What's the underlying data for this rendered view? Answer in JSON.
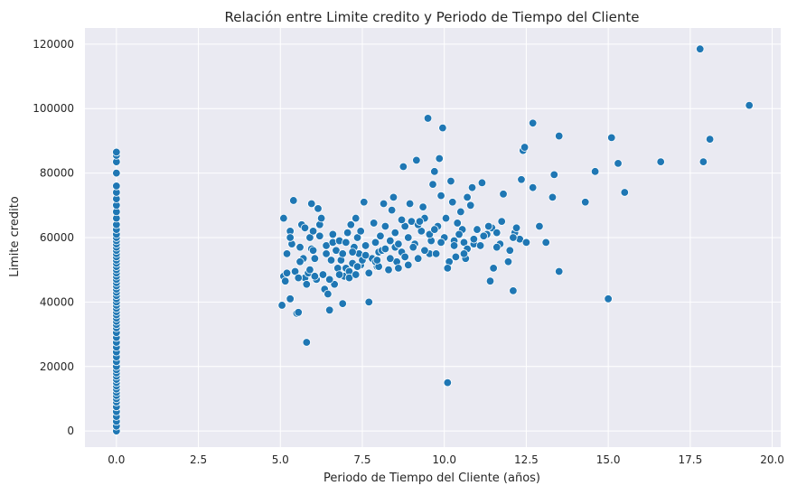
{
  "chart_data": {
    "type": "scatter",
    "title": "Relación entre Limite credito y Periodo de Tiempo del Cliente",
    "xlabel": "Periodo de Tiempo del Cliente (años)",
    "ylabel": "Limite credito",
    "xlim": [
      -0.96,
      20.26
    ],
    "ylim": [
      -5000,
      125000
    ],
    "xticks": [
      0,
      2.5,
      5,
      7.5,
      10,
      12.5,
      15,
      17.5,
      20
    ],
    "xtick_labels": [
      "0.0",
      "2.5",
      "5.0",
      "7.5",
      "10.0",
      "12.5",
      "15.0",
      "17.5",
      "20.0"
    ],
    "yticks": [
      0,
      20000,
      40000,
      60000,
      80000,
      100000,
      120000
    ],
    "ytick_labels": [
      "0",
      "20000",
      "40000",
      "60000",
      "80000",
      "100000",
      "120000"
    ],
    "grid": true,
    "point_color": "#1f77b4",
    "background_color": "#eaeaf2",
    "points": [
      [
        0,
        0
      ],
      [
        0,
        1500
      ],
      [
        0,
        3000
      ],
      [
        0,
        4500
      ],
      [
        0,
        6000
      ],
      [
        0,
        7500
      ],
      [
        0,
        9000
      ],
      [
        0,
        10000
      ],
      [
        0,
        11000
      ],
      [
        0,
        12000
      ],
      [
        0,
        13000
      ],
      [
        0,
        14000
      ],
      [
        0,
        15000
      ],
      [
        0,
        16000
      ],
      [
        0,
        17000
      ],
      [
        0,
        18000
      ],
      [
        0,
        19000
      ],
      [
        0,
        20000
      ],
      [
        0,
        21500
      ],
      [
        0,
        23000
      ],
      [
        0,
        24500
      ],
      [
        0,
        26000
      ],
      [
        0,
        27500
      ],
      [
        0,
        29000
      ],
      [
        0,
        30500
      ],
      [
        0,
        32000
      ],
      [
        0,
        33000
      ],
      [
        0,
        34000
      ],
      [
        0,
        35000
      ],
      [
        0,
        36000
      ],
      [
        0,
        37000
      ],
      [
        0,
        38000
      ],
      [
        0,
        39000
      ],
      [
        0,
        40000
      ],
      [
        0,
        41000
      ],
      [
        0,
        42000
      ],
      [
        0,
        43000
      ],
      [
        0,
        44000
      ],
      [
        0,
        45000
      ],
      [
        0,
        46000
      ],
      [
        0,
        47000
      ],
      [
        0,
        48000
      ],
      [
        0,
        49000
      ],
      [
        0,
        50000
      ],
      [
        0,
        51000
      ],
      [
        0,
        52000
      ],
      [
        0,
        53000
      ],
      [
        0,
        54000
      ],
      [
        0,
        55000
      ],
      [
        0,
        56000
      ],
      [
        0,
        57000
      ],
      [
        0,
        58000
      ],
      [
        0,
        59000
      ],
      [
        0,
        60000
      ],
      [
        0,
        61000
      ],
      [
        0,
        62500
      ],
      [
        0,
        64000
      ],
      [
        0,
        66000
      ],
      [
        0,
        68000
      ],
      [
        0,
        70000
      ],
      [
        0,
        72000
      ],
      [
        0,
        74000
      ],
      [
        0,
        76000
      ],
      [
        0,
        80000
      ],
      [
        0,
        83500
      ],
      [
        0,
        85500
      ],
      [
        0,
        86500
      ],
      [
        5.05,
        39000
      ],
      [
        5.1,
        48000
      ],
      [
        5.15,
        46500
      ],
      [
        5.2,
        55000
      ],
      [
        5.3,
        41000
      ],
      [
        5.1,
        66000
      ],
      [
        5.35,
        58000
      ],
      [
        5.3,
        62000
      ],
      [
        5.4,
        71500
      ],
      [
        5.45,
        49500
      ],
      [
        5.5,
        36500
      ],
      [
        5.55,
        36800
      ],
      [
        5.6,
        57000
      ],
      [
        5.65,
        64000
      ],
      [
        5.7,
        53500
      ],
      [
        5.75,
        47500
      ],
      [
        5.8,
        27500
      ],
      [
        5.8,
        45500
      ],
      [
        5.85,
        49000
      ],
      [
        5.9,
        60000
      ],
      [
        5.95,
        56500
      ],
      [
        5.95,
        70500
      ],
      [
        6.0,
        62000
      ],
      [
        6.05,
        53500
      ],
      [
        6.1,
        47000
      ],
      [
        6.15,
        69000
      ],
      [
        6.2,
        64000
      ],
      [
        6.25,
        66000
      ],
      [
        6.3,
        48500
      ],
      [
        6.35,
        44000
      ],
      [
        6.4,
        57500
      ],
      [
        6.45,
        42500
      ],
      [
        6.5,
        37500
      ],
      [
        6.55,
        53000
      ],
      [
        6.6,
        58500
      ],
      [
        6.65,
        45500
      ],
      [
        6.7,
        56000
      ],
      [
        6.75,
        50500
      ],
      [
        6.8,
        59000
      ],
      [
        6.85,
        53000
      ],
      [
        6.9,
        39500
      ],
      [
        6.95,
        48000
      ],
      [
        7.0,
        50500
      ],
      [
        7.05,
        61500
      ],
      [
        7.1,
        49500
      ],
      [
        7.15,
        64000
      ],
      [
        7.2,
        52000
      ],
      [
        7.25,
        57000
      ],
      [
        7.3,
        66000
      ],
      [
        7.35,
        60000
      ],
      [
        7.4,
        55000
      ],
      [
        7.45,
        51500
      ],
      [
        7.5,
        53000
      ],
      [
        7.55,
        71000
      ],
      [
        7.6,
        57500
      ],
      [
        7.7,
        40000
      ],
      [
        7.8,
        53500
      ],
      [
        7.85,
        64500
      ],
      [
        7.9,
        58500
      ],
      [
        7.95,
        51000
      ],
      [
        8.0,
        55500
      ],
      [
        8.1,
        56000
      ],
      [
        8.15,
        70500
      ],
      [
        8.2,
        63500
      ],
      [
        8.3,
        50000
      ],
      [
        8.35,
        59000
      ],
      [
        8.4,
        68500
      ],
      [
        8.45,
        72500
      ],
      [
        8.5,
        57000
      ],
      [
        8.55,
        52500
      ],
      [
        8.6,
        50500
      ],
      [
        8.7,
        55500
      ],
      [
        8.75,
        82000
      ],
      [
        8.8,
        63500
      ],
      [
        8.9,
        51500
      ],
      [
        8.95,
        70500
      ],
      [
        9.0,
        65000
      ],
      [
        9.1,
        58000
      ],
      [
        9.15,
        84000
      ],
      [
        9.2,
        53500
      ],
      [
        9.3,
        62000
      ],
      [
        9.35,
        69500
      ],
      [
        9.4,
        66000
      ],
      [
        9.5,
        97000
      ],
      [
        9.55,
        55000
      ],
      [
        9.6,
        59000
      ],
      [
        9.65,
        76500
      ],
      [
        9.7,
        80500
      ],
      [
        9.75,
        55000
      ],
      [
        9.8,
        63500
      ],
      [
        9.85,
        84500
      ],
      [
        9.9,
        73000
      ],
      [
        9.95,
        94000
      ],
      [
        10.0,
        60000
      ],
      [
        10.05,
        66000
      ],
      [
        10.1,
        15000
      ],
      [
        10.15,
        52500
      ],
      [
        10.2,
        77500
      ],
      [
        10.25,
        71000
      ],
      [
        10.3,
        59000
      ],
      [
        10.35,
        54000
      ],
      [
        10.4,
        64500
      ],
      [
        10.5,
        68000
      ],
      [
        10.55,
        62500
      ],
      [
        10.6,
        58500
      ],
      [
        10.65,
        53500
      ],
      [
        10.7,
        72500
      ],
      [
        10.8,
        70000
      ],
      [
        10.85,
        75500
      ],
      [
        10.9,
        58000
      ],
      [
        11.0,
        62500
      ],
      [
        11.1,
        57500
      ],
      [
        11.15,
        77000
      ],
      [
        11.3,
        61000
      ],
      [
        11.4,
        46500
      ],
      [
        11.45,
        63000
      ],
      [
        11.5,
        50500
      ],
      [
        11.6,
        61500
      ],
      [
        11.7,
        58000
      ],
      [
        11.75,
        65000
      ],
      [
        11.8,
        73500
      ],
      [
        11.95,
        52500
      ],
      [
        12.0,
        56000
      ],
      [
        12.1,
        43500
      ],
      [
        12.15,
        61500
      ],
      [
        12.2,
        63000
      ],
      [
        12.3,
        59500
      ],
      [
        12.35,
        78000
      ],
      [
        12.4,
        87000
      ],
      [
        12.45,
        88000
      ],
      [
        12.5,
        58500
      ],
      [
        12.7,
        75500
      ],
      [
        12.7,
        95500
      ],
      [
        12.9,
        63500
      ],
      [
        13.1,
        58500
      ],
      [
        13.3,
        72500
      ],
      [
        13.35,
        79500
      ],
      [
        13.5,
        49500
      ],
      [
        13.5,
        91500
      ],
      [
        14.3,
        71000
      ],
      [
        14.6,
        80500
      ],
      [
        15.0,
        41000
      ],
      [
        15.1,
        91000
      ],
      [
        15.3,
        83000
      ],
      [
        15.5,
        74000
      ],
      [
        16.6,
        83500
      ],
      [
        17.8,
        118500
      ],
      [
        17.9,
        83500
      ],
      [
        18.1,
        90500
      ],
      [
        19.3,
        101000
      ],
      [
        5.2,
        49000
      ],
      [
        5.3,
        60000
      ],
      [
        5.6,
        52500
      ],
      [
        5.75,
        63000
      ],
      [
        5.9,
        50000
      ],
      [
        6.0,
        56000
      ],
      [
        6.2,
        60500
      ],
      [
        6.4,
        55000
      ],
      [
        6.6,
        61000
      ],
      [
        6.8,
        48500
      ],
      [
        6.9,
        55000
      ],
      [
        7.0,
        58500
      ],
      [
        7.1,
        47500
      ],
      [
        7.2,
        55500
      ],
      [
        7.35,
        51000
      ],
      [
        7.45,
        62000
      ],
      [
        7.6,
        54500
      ],
      [
        7.7,
        49000
      ],
      [
        7.9,
        52500
      ],
      [
        8.05,
        60500
      ],
      [
        8.2,
        56500
      ],
      [
        8.35,
        53500
      ],
      [
        8.5,
        61500
      ],
      [
        8.6,
        58000
      ],
      [
        8.8,
        54000
      ],
      [
        8.9,
        60000
      ],
      [
        9.05,
        57000
      ],
      [
        9.2,
        64000
      ],
      [
        9.4,
        56000
      ],
      [
        9.55,
        61000
      ],
      [
        9.7,
        62500
      ],
      [
        9.9,
        58500
      ],
      [
        10.1,
        50500
      ],
      [
        10.3,
        57500
      ],
      [
        10.45,
        61000
      ],
      [
        10.7,
        56500
      ],
      [
        10.9,
        59500
      ],
      [
        11.2,
        60500
      ],
      [
        11.6,
        57000
      ],
      [
        12.1,
        60000
      ],
      [
        6.5,
        47000
      ],
      [
        7.3,
        48500
      ],
      [
        8.0,
        51000
      ],
      [
        8.7,
        65500
      ],
      [
        9.25,
        65000
      ],
      [
        6.05,
        48000
      ],
      [
        5.55,
        47500
      ],
      [
        7.95,
        53000
      ],
      [
        10.6,
        55000
      ],
      [
        11.35,
        63500
      ]
    ]
  }
}
